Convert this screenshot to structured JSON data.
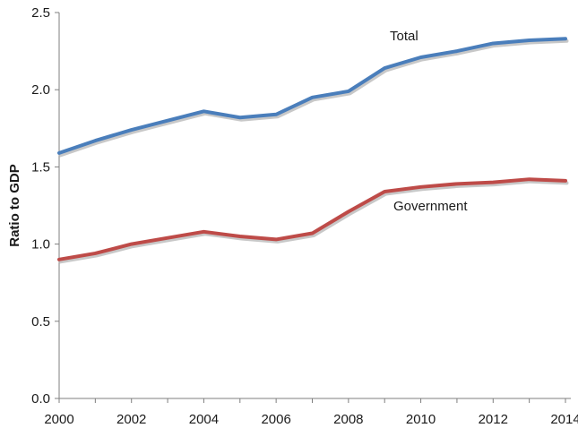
{
  "chart_data": {
    "type": "line",
    "xlabel": "",
    "ylabel": "Ratio to GDP",
    "x": [
      2000,
      2001,
      2002,
      2003,
      2004,
      2005,
      2006,
      2007,
      2008,
      2009,
      2010,
      2011,
      2012,
      2013,
      2014
    ],
    "xticks": [
      "2000",
      "2002",
      "2004",
      "2006",
      "2008",
      "2010",
      "2012",
      "2014"
    ],
    "yticks": [
      "0.0",
      "0.5",
      "1.0",
      "1.5",
      "2.0",
      "2.5"
    ],
    "xlim": [
      2000,
      2014
    ],
    "ylim": [
      0,
      2.5
    ],
    "grid": false,
    "legend": "inline labels",
    "series": [
      {
        "name": "Total",
        "color": "#4a7ebb",
        "values": [
          1.59,
          1.67,
          1.74,
          1.8,
          1.86,
          1.82,
          1.84,
          1.95,
          1.99,
          2.14,
          2.21,
          2.25,
          2.3,
          2.32,
          2.33
        ]
      },
      {
        "name": "Government",
        "color": "#be4b48",
        "values": [
          0.9,
          0.94,
          1.0,
          1.04,
          1.08,
          1.05,
          1.03,
          1.07,
          1.21,
          1.34,
          1.37,
          1.39,
          1.4,
          1.42,
          1.41
        ]
      }
    ]
  }
}
